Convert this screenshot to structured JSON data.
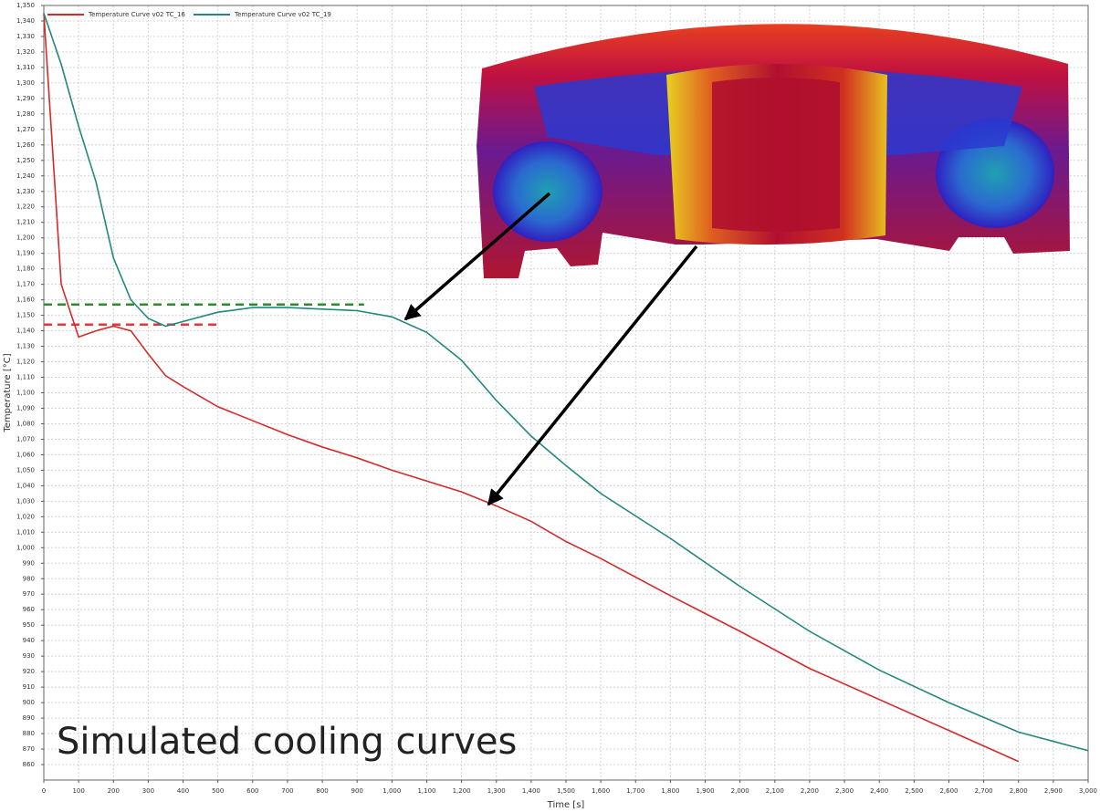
{
  "chart_data": {
    "type": "line",
    "xlabel": "Time [s]",
    "ylabel": "Temperature [°C]",
    "annotation": "Simulated cooling curves",
    "x": [
      0,
      50,
      100,
      150,
      200,
      250,
      300,
      350,
      400,
      500,
      600,
      700,
      800,
      900,
      1000,
      1100,
      1200,
      1300,
      1400,
      1500,
      1600,
      1800,
      2000,
      2200,
      2400,
      2600,
      2800,
      2900,
      3000
    ],
    "series": [
      {
        "name": "Temperature Curve  v02 TC_16",
        "color": "#d42a2a",
        "values": [
          1345,
          1170,
          1136,
          1140,
          1143,
          1140,
          1125,
          1111,
          1104,
          1091,
          1082,
          1073,
          1065,
          1058,
          1050,
          1043,
          1036,
          1027,
          1017,
          1004,
          993,
          969,
          946,
          922,
          902,
          882,
          862,
          null,
          null
        ]
      },
      {
        "name": "Temperature Curve  v02 TC_19",
        "color": "#22877e",
        "values": [
          1345,
          1312,
          1272,
          1236,
          1187,
          1160,
          1148,
          1143,
          1146,
          1152,
          1155,
          1155,
          1154,
          1153,
          1149,
          1139,
          1121,
          1095,
          1072,
          1053,
          1035,
          1006,
          975,
          946,
          921,
          900,
          881,
          875,
          869
        ]
      }
    ],
    "reference_lines": [
      {
        "value": 1157,
        "x": [
          0,
          920
        ],
        "color": "#2e8b2e"
      },
      {
        "value": 1144,
        "x": [
          0,
          500
        ],
        "color": "#e03a3a"
      }
    ],
    "xlim": [
      0,
      3000
    ],
    "xticks": [
      0,
      100,
      200,
      300,
      400,
      500,
      600,
      700,
      800,
      900,
      {
        "value": 1000,
        "label": "1,000"
      },
      {
        "value": 1100,
        "label": "1,100"
      },
      {
        "value": 1200,
        "label": "1,200"
      },
      {
        "value": 1300,
        "label": "1,300"
      },
      {
        "value": 1400,
        "label": "1,400"
      },
      {
        "value": 1500,
        "label": "1,500"
      },
      {
        "value": 1600,
        "label": "1,600"
      },
      {
        "value": 1700,
        "label": "1,700"
      },
      {
        "value": 1800,
        "label": "1,800"
      },
      {
        "value": 1900,
        "label": "1,900"
      },
      {
        "value": 2000,
        "label": "2,000"
      },
      {
        "value": 2100,
        "label": "2,100"
      },
      {
        "value": 2200,
        "label": "2,200"
      },
      {
        "value": 2300,
        "label": "2,300"
      },
      {
        "value": 2400,
        "label": "2,400"
      },
      {
        "value": 2500,
        "label": "2,500"
      },
      {
        "value": 2600,
        "label": "2,600"
      },
      {
        "value": 2700,
        "label": "2,700"
      },
      {
        "value": 2800,
        "label": "2,800"
      },
      {
        "value": 2900,
        "label": "2,900"
      },
      {
        "value": 3000,
        "label": "3,000"
      }
    ],
    "ylim": [
      850,
      1350
    ],
    "yticks": [
      860,
      870,
      880,
      890,
      900,
      910,
      920,
      930,
      940,
      950,
      960,
      970,
      980,
      990,
      {
        "value": 1000,
        "label": "1,000"
      },
      {
        "value": 1010,
        "label": "1,010"
      },
      {
        "value": 1020,
        "label": "1,020"
      },
      {
        "value": 1030,
        "label": "1,030"
      },
      {
        "value": 1040,
        "label": "1,040"
      },
      {
        "value": 1050,
        "label": "1,050"
      },
      {
        "value": 1060,
        "label": "1,060"
      },
      {
        "value": 1070,
        "label": "1,070"
      },
      {
        "value": 1080,
        "label": "1,080"
      },
      {
        "value": 1090,
        "label": "1,090"
      },
      {
        "value": 1100,
        "label": "1,100"
      },
      {
        "value": 1110,
        "label": "1,110"
      },
      {
        "value": 1120,
        "label": "1,120"
      },
      {
        "value": 1130,
        "label": "1,130"
      },
      {
        "value": 1140,
        "label": "1,140"
      },
      {
        "value": 1150,
        "label": "1,150"
      },
      {
        "value": 1160,
        "label": "1,160"
      },
      {
        "value": 1170,
        "label": "1,170"
      },
      {
        "value": 1180,
        "label": "1,180"
      },
      {
        "value": 1190,
        "label": "1,190"
      },
      {
        "value": 1200,
        "label": "1,200"
      },
      {
        "value": 1210,
        "label": "1,210"
      },
      {
        "value": 1220,
        "label": "1,220"
      },
      {
        "value": 1230,
        "label": "1,230"
      },
      {
        "value": 1240,
        "label": "1,240"
      },
      {
        "value": 1250,
        "label": "1,250"
      },
      {
        "value": 1260,
        "label": "1,260"
      },
      {
        "value": 1270,
        "label": "1,270"
      },
      {
        "value": 1280,
        "label": "1,280"
      },
      {
        "value": 1290,
        "label": "1,290"
      },
      {
        "value": 1300,
        "label": "1,300"
      },
      {
        "value": 1310,
        "label": "1,310"
      },
      {
        "value": 1320,
        "label": "1,320"
      },
      {
        "value": 1330,
        "label": "1,330"
      },
      {
        "value": 1340,
        "label": "1,340"
      },
      {
        "value": 1350,
        "label": "1,350"
      }
    ],
    "grid": true
  }
}
